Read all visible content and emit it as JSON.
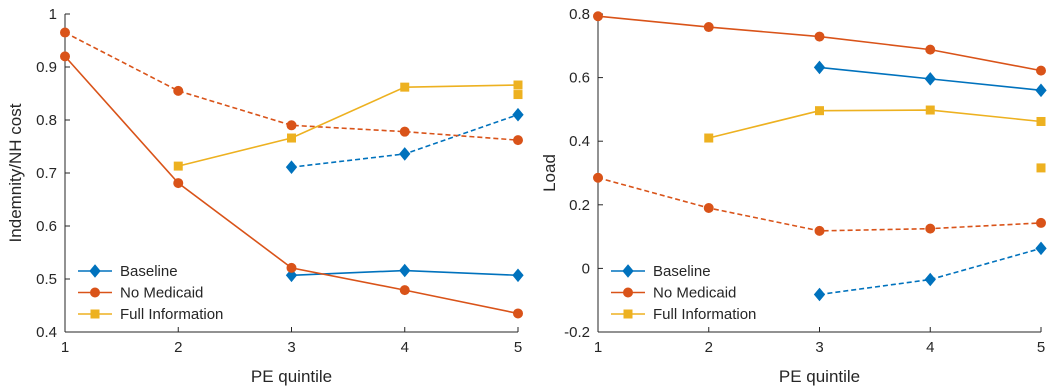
{
  "chart_data": [
    {
      "type": "line",
      "xlabel": "PE quintile",
      "ylabel": "Indemnity/NH cost",
      "xlim": [
        1,
        5
      ],
      "ylim": [
        0.4,
        1
      ],
      "xticks": [
        1,
        2,
        3,
        4,
        5
      ],
      "yticks": [
        0.4,
        0.5,
        0.6,
        0.7,
        0.8,
        0.9,
        1
      ],
      "ytick_labels": [
        "0.4",
        "0.5",
        "0.6",
        "0.7",
        "0.8",
        "0.9",
        "1"
      ],
      "grid": false,
      "legend_position": "bottom-left",
      "legend": [
        "Baseline",
        "No Medicaid",
        "Full Information"
      ],
      "series": [
        {
          "name": "Baseline",
          "color": "#0072BD",
          "marker": "diamond",
          "linestyle": "solid",
          "x": [
            3,
            4,
            5
          ],
          "y": [
            0.507,
            0.516,
            0.507
          ]
        },
        {
          "color": "#0072BD",
          "marker": "diamond",
          "linestyle": "dashed",
          "x": [
            3,
            4,
            5
          ],
          "y": [
            0.711,
            0.736,
            0.81
          ]
        },
        {
          "name": "No Medicaid",
          "color": "#D95319",
          "marker": "circle",
          "linestyle": "solid",
          "x": [
            1,
            2,
            3,
            4,
            5
          ],
          "y": [
            0.92,
            0.681,
            0.521,
            0.479,
            0.435
          ]
        },
        {
          "color": "#D95319",
          "marker": "circle",
          "linestyle": "dashed",
          "x": [
            1,
            2,
            3,
            4,
            5
          ],
          "y": [
            0.965,
            0.855,
            0.79,
            0.778,
            0.762
          ]
        },
        {
          "name": "Full Information",
          "color": "#EDB120",
          "marker": "square",
          "linestyle": "solid",
          "x": [
            2,
            3,
            4,
            5
          ],
          "y": [
            0.713,
            0.766,
            0.862,
            0.866
          ]
        },
        {
          "color": "#EDB120",
          "marker": "square",
          "linestyle": "none",
          "x": [
            5
          ],
          "y": [
            0.848
          ]
        }
      ]
    },
    {
      "type": "line",
      "xlabel": "PE quintile",
      "ylabel": "Load",
      "xlim": [
        1,
        5
      ],
      "ylim": [
        -0.2,
        0.8
      ],
      "xticks": [
        1,
        2,
        3,
        4,
        5
      ],
      "yticks": [
        -0.2,
        0,
        0.2,
        0.4,
        0.6,
        0.8
      ],
      "ytick_labels": [
        "-0.2",
        "0",
        "0.2",
        "0.4",
        "0.6",
        "0.8"
      ],
      "grid": false,
      "legend_position": "bottom-left",
      "legend": [
        "Baseline",
        "No Medicaid",
        "Full Information"
      ],
      "series": [
        {
          "name": "Baseline",
          "color": "#0072BD",
          "marker": "diamond",
          "linestyle": "solid",
          "x": [
            3,
            4,
            5
          ],
          "y": [
            0.632,
            0.596,
            0.56
          ]
        },
        {
          "color": "#0072BD",
          "marker": "diamond",
          "linestyle": "dashed",
          "x": [
            3,
            4,
            5
          ],
          "y": [
            -0.082,
            -0.035,
            0.063
          ]
        },
        {
          "name": "No Medicaid",
          "color": "#D95319",
          "marker": "circle",
          "linestyle": "solid",
          "x": [
            1,
            2,
            3,
            4,
            5
          ],
          "y": [
            0.793,
            0.759,
            0.729,
            0.688,
            0.622
          ]
        },
        {
          "color": "#D95319",
          "marker": "circle",
          "linestyle": "dashed",
          "x": [
            1,
            2,
            3,
            4,
            5
          ],
          "y": [
            0.285,
            0.19,
            0.118,
            0.125,
            0.143
          ]
        },
        {
          "name": "Full Information",
          "color": "#EDB120",
          "marker": "square",
          "linestyle": "solid",
          "x": [
            2,
            3,
            4,
            5
          ],
          "y": [
            0.41,
            0.496,
            0.498,
            0.462
          ]
        },
        {
          "color": "#EDB120",
          "marker": "square",
          "linestyle": "none",
          "x": [
            5
          ],
          "y": [
            0.316
          ]
        }
      ]
    }
  ]
}
